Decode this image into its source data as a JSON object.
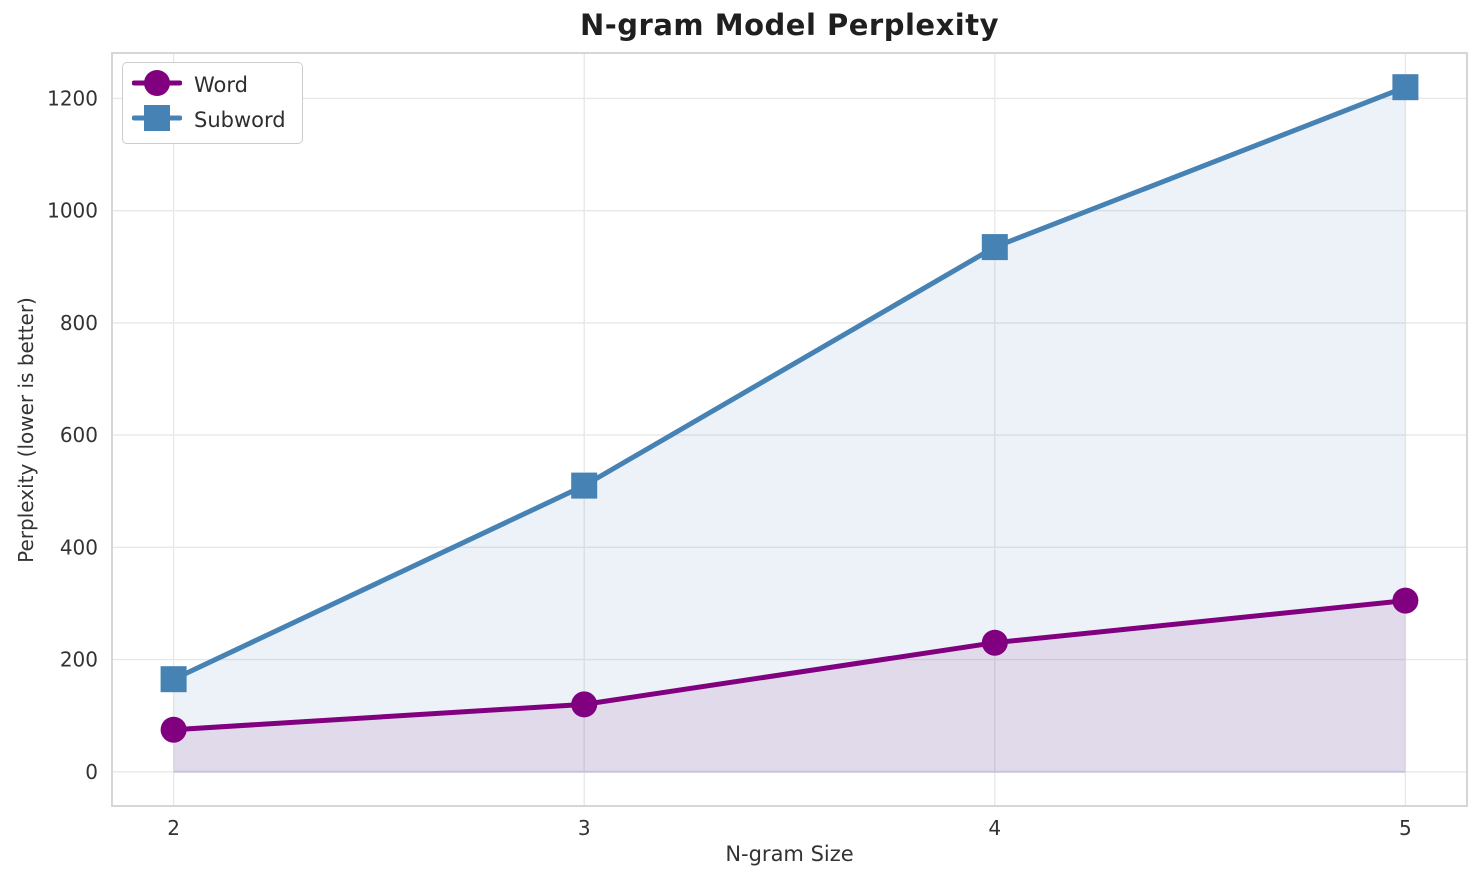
{
  "chart_data": {
    "type": "line",
    "title": "N-gram Model Perplexity",
    "xlabel": "N-gram Size",
    "ylabel": "Perplexity (lower is better)",
    "x": [
      2,
      3,
      4,
      5
    ],
    "series": [
      {
        "name": "Word",
        "color": "#800080",
        "marker": "circle",
        "values": [
          75,
          120,
          230,
          305
        ]
      },
      {
        "name": "Subword",
        "color": "#4682B4",
        "marker": "square",
        "values": [
          165,
          510,
          935,
          1220
        ]
      }
    ],
    "fill_to_zero": true,
    "fill_alpha": 0.1,
    "fill_baseline": 0,
    "xlim": [
      1.85,
      5.15
    ],
    "ylim": [
      -61,
      1281
    ],
    "xticks": [
      "2",
      "3",
      "4",
      "5"
    ],
    "xtick_values": [
      2,
      3,
      4,
      5
    ],
    "yticks": [
      "0",
      "200",
      "400",
      "600",
      "800",
      "1000",
      "1200"
    ],
    "ytick_values": [
      0,
      200,
      400,
      600,
      800,
      1000,
      1200
    ],
    "grid": true,
    "legend_position": "upper-left",
    "legend_entries": [
      "Word",
      "Subword"
    ],
    "colors": {
      "grid": "#e8e8e8",
      "spine": "#d2d2d2",
      "fill_edge": "#c9c3de",
      "tick_label": "#333333",
      "title": "#1f1f1f"
    },
    "line_width": 5,
    "marker_size": 26
  }
}
